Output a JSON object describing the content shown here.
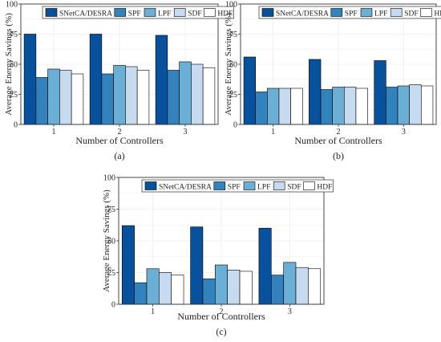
{
  "colors": {
    "series": [
      "#08519c",
      "#3182bd",
      "#6baed6",
      "#c6dbef",
      "#ffffff"
    ],
    "grid": "#ececec",
    "frame": "#333333"
  },
  "chart_data": [
    {
      "type": "bar",
      "panel_label": "(a)",
      "xlabel": "Number of Controllers",
      "ylabel": "Average Energy Savings (%)",
      "categories": [
        "1",
        "2",
        "3"
      ],
      "ylim": [
        0,
        100
      ],
      "yticks": [
        0,
        25,
        50,
        75,
        100
      ],
      "grid": true,
      "legend_position": "top",
      "series": [
        {
          "name": "SNetCA/DESRA",
          "values": [
            75,
            75,
            74
          ]
        },
        {
          "name": "SPF",
          "values": [
            39,
            42,
            45
          ]
        },
        {
          "name": "LPF",
          "values": [
            46,
            49,
            52
          ]
        },
        {
          "name": "SDF",
          "values": [
            45,
            48,
            50
          ]
        },
        {
          "name": "HDF",
          "values": [
            42,
            45,
            47
          ]
        }
      ]
    },
    {
      "type": "bar",
      "panel_label": "(b)",
      "xlabel": "Number of Controllers",
      "ylabel": "Average Energy Savings (%)",
      "categories": [
        "1",
        "2",
        "3"
      ],
      "ylim": [
        0,
        100
      ],
      "yticks": [
        0,
        25,
        50,
        75,
        100
      ],
      "grid": true,
      "legend_position": "top",
      "series": [
        {
          "name": "SNetCA/DESRA",
          "values": [
            56,
            54,
            53
          ]
        },
        {
          "name": "SPF",
          "values": [
            27,
            29,
            31
          ]
        },
        {
          "name": "LPF",
          "values": [
            30,
            31,
            32
          ]
        },
        {
          "name": "SDF",
          "values": [
            30,
            31,
            33
          ]
        },
        {
          "name": "HDF",
          "values": [
            30,
            30,
            32
          ]
        }
      ]
    },
    {
      "type": "bar",
      "panel_label": "(c)",
      "xlabel": "Number of Controllers",
      "ylabel": "Average Energy Savings (%)",
      "categories": [
        "1",
        "2",
        "3"
      ],
      "ylim": [
        0,
        100
      ],
      "yticks": [
        0,
        25,
        50,
        75,
        100
      ],
      "grid": true,
      "legend_position": "top",
      "series": [
        {
          "name": "SNetCA/DESRA",
          "values": [
            62,
            61,
            60
          ]
        },
        {
          "name": "SPF",
          "values": [
            17,
            20,
            23
          ]
        },
        {
          "name": "LPF",
          "values": [
            28,
            31,
            33
          ]
        },
        {
          "name": "SDF",
          "values": [
            25,
            27,
            29
          ]
        },
        {
          "name": "HDF",
          "values": [
            23,
            26,
            28
          ]
        }
      ]
    }
  ]
}
